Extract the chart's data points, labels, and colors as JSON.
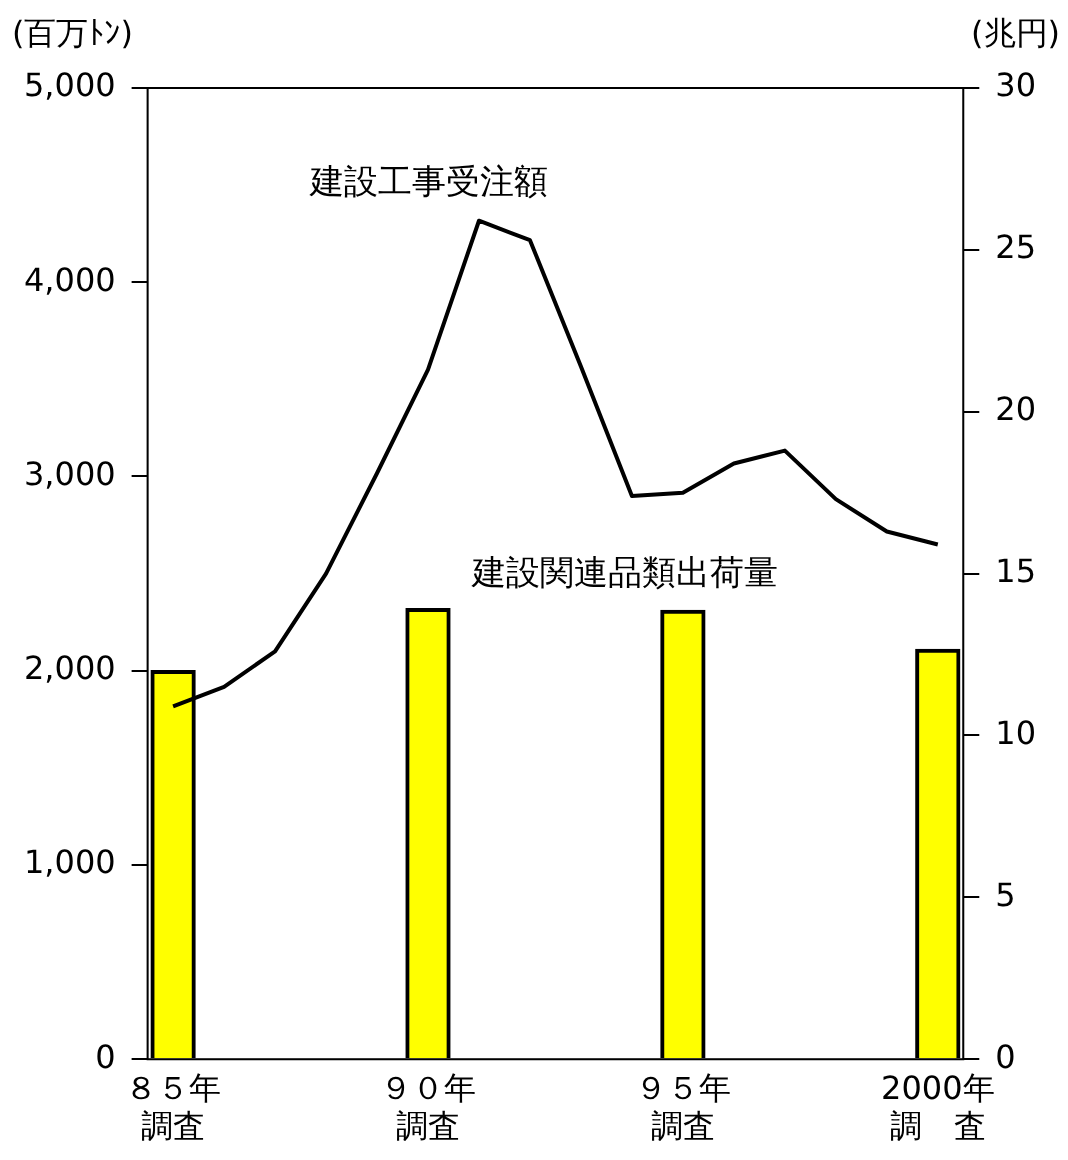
{
  "chart_data": {
    "type": "bar",
    "ylabel": "(百万ﾄﾝ)",
    "y2label": "(兆円)",
    "categories": [
      "８５年調査",
      null,
      null,
      null,
      null,
      "９０年調査",
      null,
      null,
      null,
      null,
      "９５年調査",
      null,
      null,
      null,
      null,
      "2000年調　査"
    ],
    "series": [
      {
        "name": "建設関連品類出荷量",
        "color": "#ffff00",
        "values": [
          2000,
          null,
          null,
          null,
          null,
          2320,
          null,
          null,
          null,
          null,
          2310,
          null,
          null,
          null,
          null,
          2110
        ]
      },
      {
        "name": "建設工事受注額",
        "type": "line",
        "axis": "y2",
        "color": "#000000",
        "values": [
          10.9,
          11.5,
          12.6,
          15.0,
          18.1,
          21.3,
          25.9,
          25.3,
          21.4,
          17.4,
          17.5,
          18.4,
          18.8,
          17.3,
          16.3,
          15.9
        ]
      }
    ],
    "ylim": [
      0,
      5000
    ],
    "yticks": [
      {
        "value": 0,
        "label": "0"
      },
      {
        "value": 1000,
        "label": "1,000"
      },
      {
        "value": 2000,
        "label": "2,000"
      },
      {
        "value": 3000,
        "label": "3,000"
      },
      {
        "value": 4000,
        "label": "4,000"
      },
      {
        "value": 5000,
        "label": "5,000"
      }
    ],
    "y2lim": [
      0,
      30
    ],
    "y2ticks": [
      0,
      5,
      10,
      15,
      20,
      25,
      30
    ],
    "grid": false,
    "legend": false,
    "marker": "none",
    "line_style": "solid"
  }
}
